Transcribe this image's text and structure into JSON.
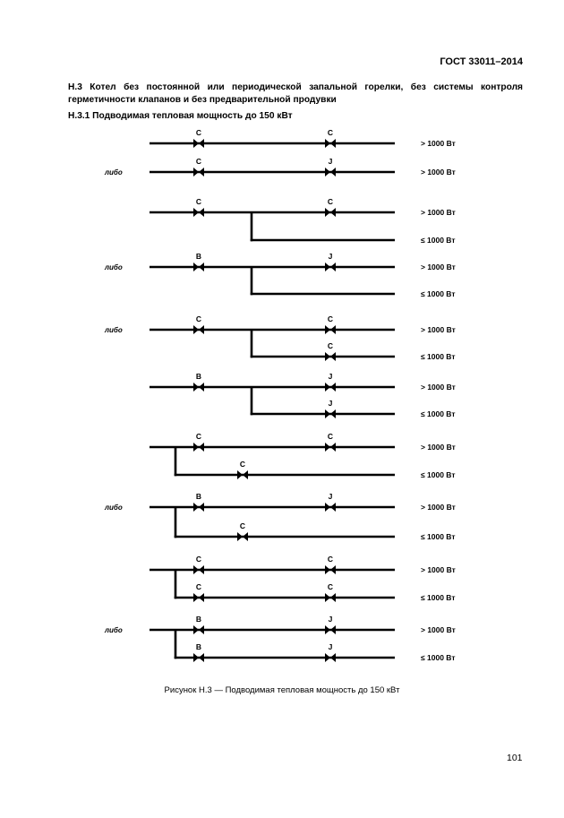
{
  "header": {
    "doc_id": "ГОСТ 33011–2014"
  },
  "section": {
    "heading": "Н.3 Котел без постоянной или периодической запальной горелки, без системы контроля герметичности клапанов и без предварительной продувки",
    "subheading": "Н.3.1 Подводимая тепловая мощность до 150 кВт"
  },
  "diagram": {
    "alt_label": "либо",
    "label_high": "> 1000 Вт",
    "label_low": "≤ 1000 Вт",
    "schemes": [
      {
        "alt": false,
        "main_valves": [
          "C",
          "C"
        ],
        "branch": null
      },
      {
        "alt": true,
        "main_valves": [
          "C",
          "J"
        ],
        "branch": null
      },
      {
        "alt": false,
        "main_valves": [
          "C",
          "C"
        ],
        "branch": {
          "from": "between",
          "valves": []
        }
      },
      {
        "alt": true,
        "main_valves": [
          "B",
          "J"
        ],
        "branch": {
          "from": "between",
          "valves": []
        }
      },
      {
        "alt": true,
        "main_valves": [
          "C",
          "C"
        ],
        "branch": {
          "from": "between",
          "valves": [
            "C"
          ]
        }
      },
      {
        "alt": false,
        "main_valves": [
          "B",
          "J"
        ],
        "branch": {
          "from": "between",
          "valves": [
            "J"
          ]
        }
      },
      {
        "alt": false,
        "main_valves": [
          "C",
          "C"
        ],
        "branch": {
          "from": "inlet",
          "valves": [
            "C"
          ]
        }
      },
      {
        "alt": true,
        "main_valves": [
          "B",
          "J"
        ],
        "branch": {
          "from": "inlet",
          "valves": [
            "C"
          ]
        }
      },
      {
        "alt": false,
        "main_valves": [
          "C",
          "C"
        ],
        "branch": {
          "from": "inlet",
          "valves": [
            "C",
            "C"
          ]
        }
      },
      {
        "alt": true,
        "main_valves": [
          "B",
          "J"
        ],
        "branch": {
          "from": "inlet",
          "valves": [
            "B",
            "J"
          ]
        }
      }
    ]
  },
  "caption": "Рисунок Н.3 — Подводимая тепловая мощность до 150 кВт",
  "page_number": "101"
}
